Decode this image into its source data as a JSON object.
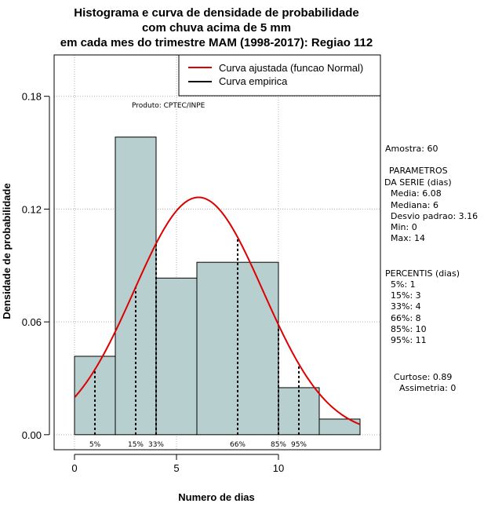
{
  "chart_data": {
    "type": "bar",
    "title_lines": [
      "Histograma e curva de densidade de probabilidade",
      "com chuva acima de 5 mm",
      "em cada mes do trimestre MAM (1998-2017): Regiao 112"
    ],
    "xlabel": "Numero de dias",
    "ylabel": "Densidade de probabilidade",
    "xlim": [
      -1,
      15
    ],
    "ylim": [
      -0.008,
      0.202
    ],
    "x_ticks": [
      0,
      5,
      10
    ],
    "y_ticks": [
      0.0,
      0.06,
      0.12,
      0.18
    ],
    "x_tick_labels": [
      "0",
      "5",
      "10"
    ],
    "y_tick_labels": [
      "0.00",
      "0.06",
      "0.12",
      "0.18"
    ],
    "bins": [
      {
        "from": 0,
        "to": 2,
        "density": 0.0417
      },
      {
        "from": 2,
        "to": 4,
        "density": 0.1583
      },
      {
        "from": 4,
        "to": 6,
        "density": 0.0833
      },
      {
        "from": 6,
        "to": 10,
        "density": 0.0917
      },
      {
        "from": 10,
        "to": 12,
        "density": 0.025
      },
      {
        "from": 12,
        "to": 14,
        "density": 0.0083
      }
    ],
    "normal_fit": {
      "mean": 6.08,
      "sd": 3.16,
      "x_from": 0,
      "x_to": 14
    },
    "percentile_lines": [
      {
        "label": "5%",
        "x": 1
      },
      {
        "label": "15%",
        "x": 3
      },
      {
        "label": "33%",
        "x": 4
      },
      {
        "label": "66%",
        "x": 8
      },
      {
        "label": "85%",
        "x": 10
      },
      {
        "label": "95%",
        "x": 11
      }
    ],
    "legend": {
      "position": "top-right",
      "entries": [
        {
          "label": "Curva ajustada (funcao Normal)",
          "color": "#dd0000"
        },
        {
          "label": "Curva empirica",
          "color": "#000000"
        }
      ]
    },
    "annotation": "Produto: CPTEC/INPE",
    "grid": true,
    "colors": {
      "bar_fill": "#b8cfcf",
      "curve": "#dd0000",
      "grid": "#b0b0b0"
    }
  },
  "side_panel": {
    "sample": "Amostra: 60",
    "params_title_1": "PARAMETROS",
    "params_title_2": "DA SERIE (dias)",
    "params": [
      "Media: 6.08",
      "Mediana: 6",
      "Desvio padrao: 3.16",
      "Min: 0",
      "Max: 14"
    ],
    "percentis_title": "PERCENTIS (dias)",
    "percentis": [
      "5%: 1",
      "15%: 3",
      "33%: 4",
      "66%: 8",
      "85%: 10",
      "95%: 11"
    ],
    "curtose": "Curtose: 0.89",
    "assimetria": "Assimetria: 0"
  }
}
